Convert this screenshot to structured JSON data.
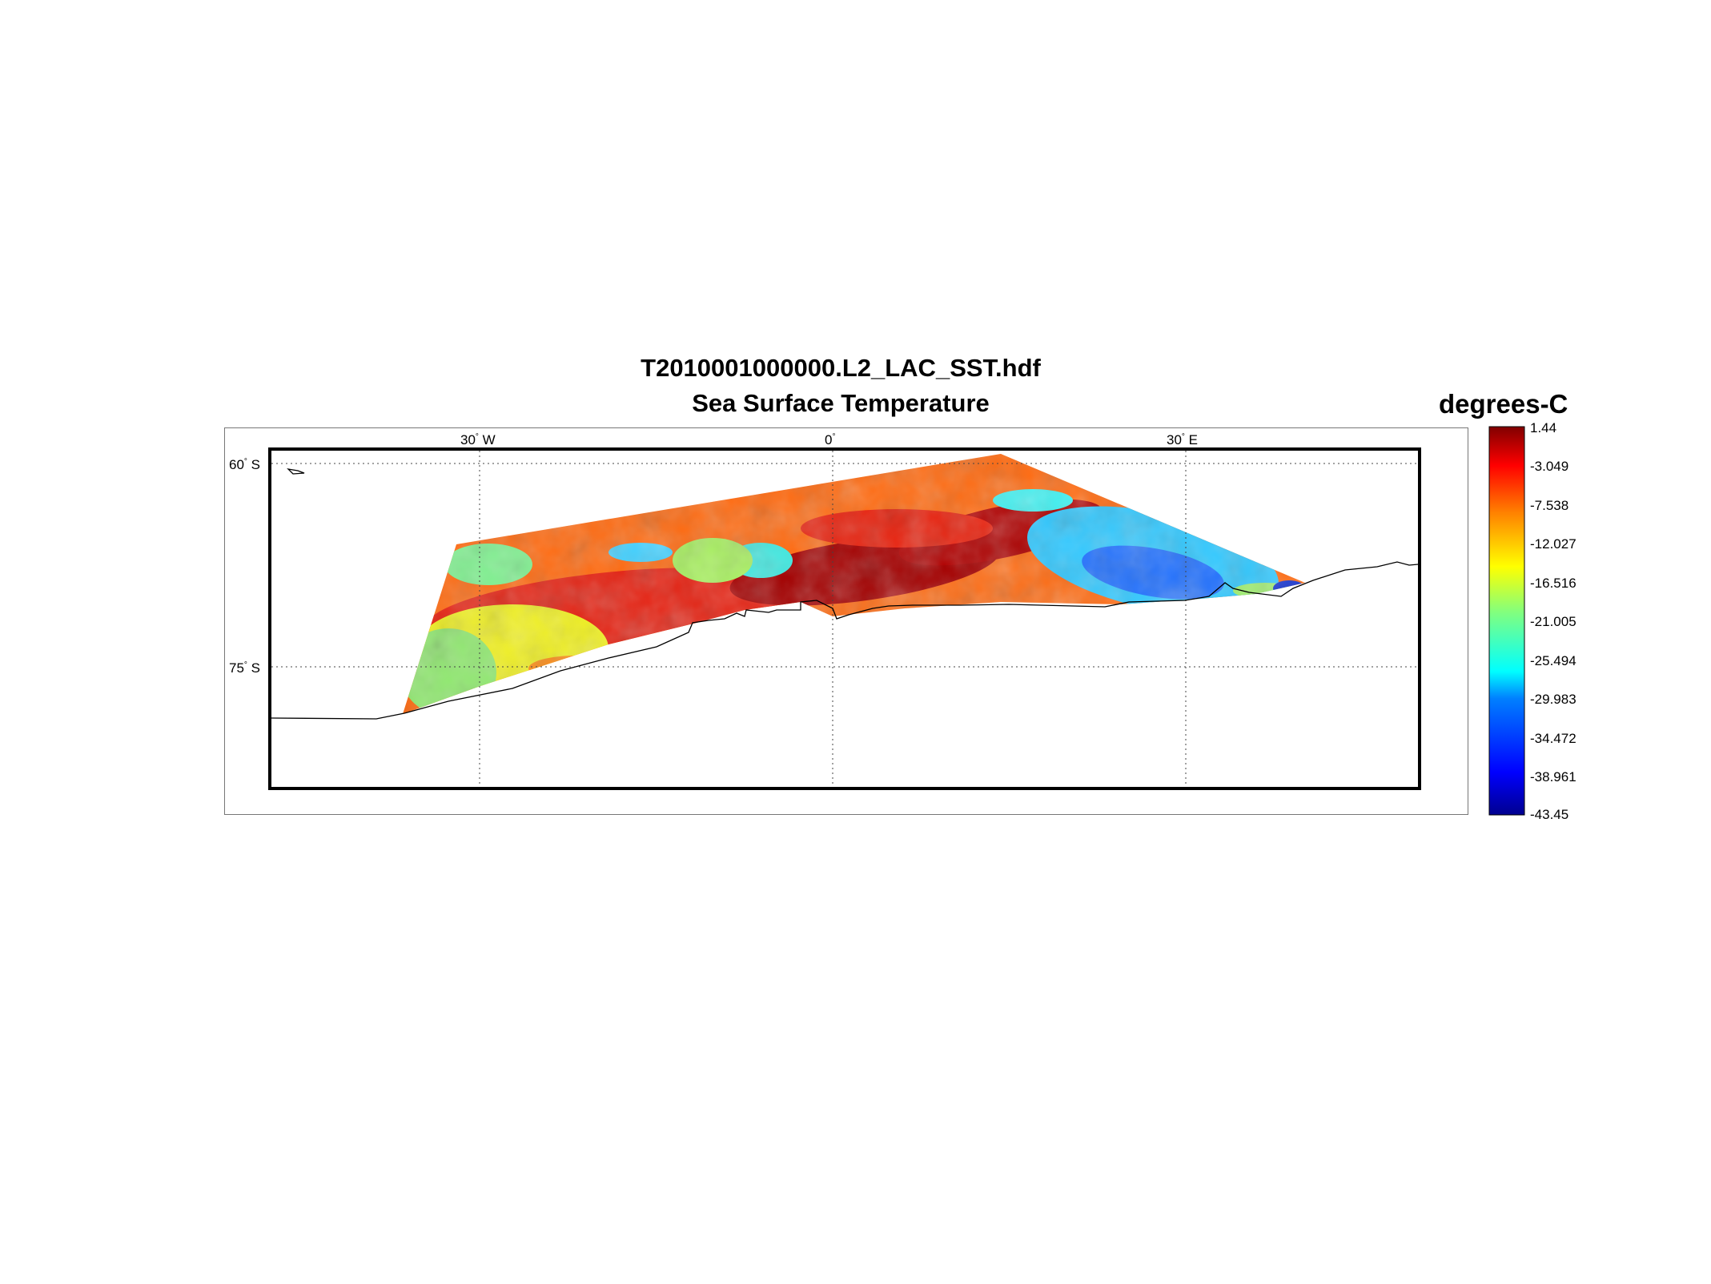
{
  "figure": {
    "title_line1": "T2010001000000.L2_LAC_SST.hdf",
    "title_line2": "Sea Surface Temperature",
    "units_label": "degrees-C"
  },
  "map": {
    "type": "swath-map",
    "projection": "polar-conic",
    "lon_ticks": [
      {
        "label": "30",
        "suffix": "W"
      },
      {
        "label": "0",
        "suffix": ""
      },
      {
        "label": "30",
        "suffix": "E"
      }
    ],
    "lat_ticks": [
      {
        "label": "60",
        "suffix": "S"
      },
      {
        "label": "75",
        "suffix": "S"
      }
    ],
    "graticule": "dotted",
    "coastline_color": "#000000"
  },
  "colorbar": {
    "colormap": "jet",
    "min": -43.45,
    "max": 1.44,
    "tick_labels": [
      "1.44",
      "-3.049",
      "-7.538",
      "-12.027",
      "-16.516",
      "-21.005",
      "-25.494",
      "-29.983",
      "-34.472",
      "-38.961",
      "-43.45"
    ]
  },
  "colors": {
    "jet": [
      "#00008f",
      "#0000ff",
      "#0080ff",
      "#00ffff",
      "#80ff80",
      "#ffff00",
      "#ff8000",
      "#ff0000",
      "#800000"
    ]
  }
}
